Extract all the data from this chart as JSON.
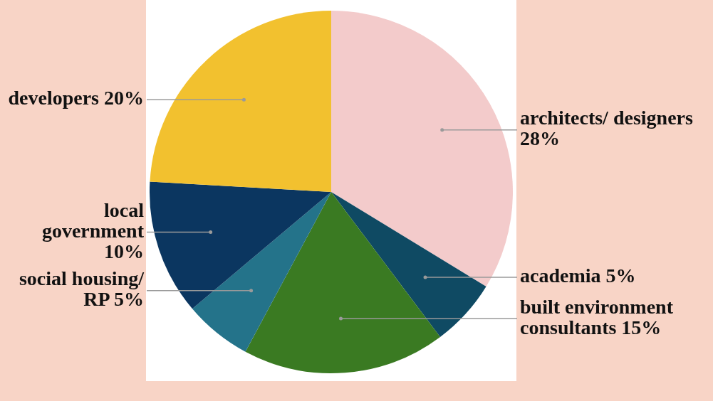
{
  "chart_data": {
    "type": "pie",
    "categories": [
      "architects/ designers",
      "academia",
      "built environment consultants",
      "social housing/ RP",
      "local government",
      "developers"
    ],
    "values": [
      28,
      5,
      15,
      5,
      10,
      20
    ],
    "value_labels": [
      "28%",
      "5%",
      "15%",
      "5%",
      "10%",
      "20%"
    ],
    "colors": [
      "#f3cbcb",
      "#0f4a63",
      "#3a7a22",
      "#24738a",
      "#0b3660",
      "#f2c12f"
    ],
    "legend": false
  }
}
